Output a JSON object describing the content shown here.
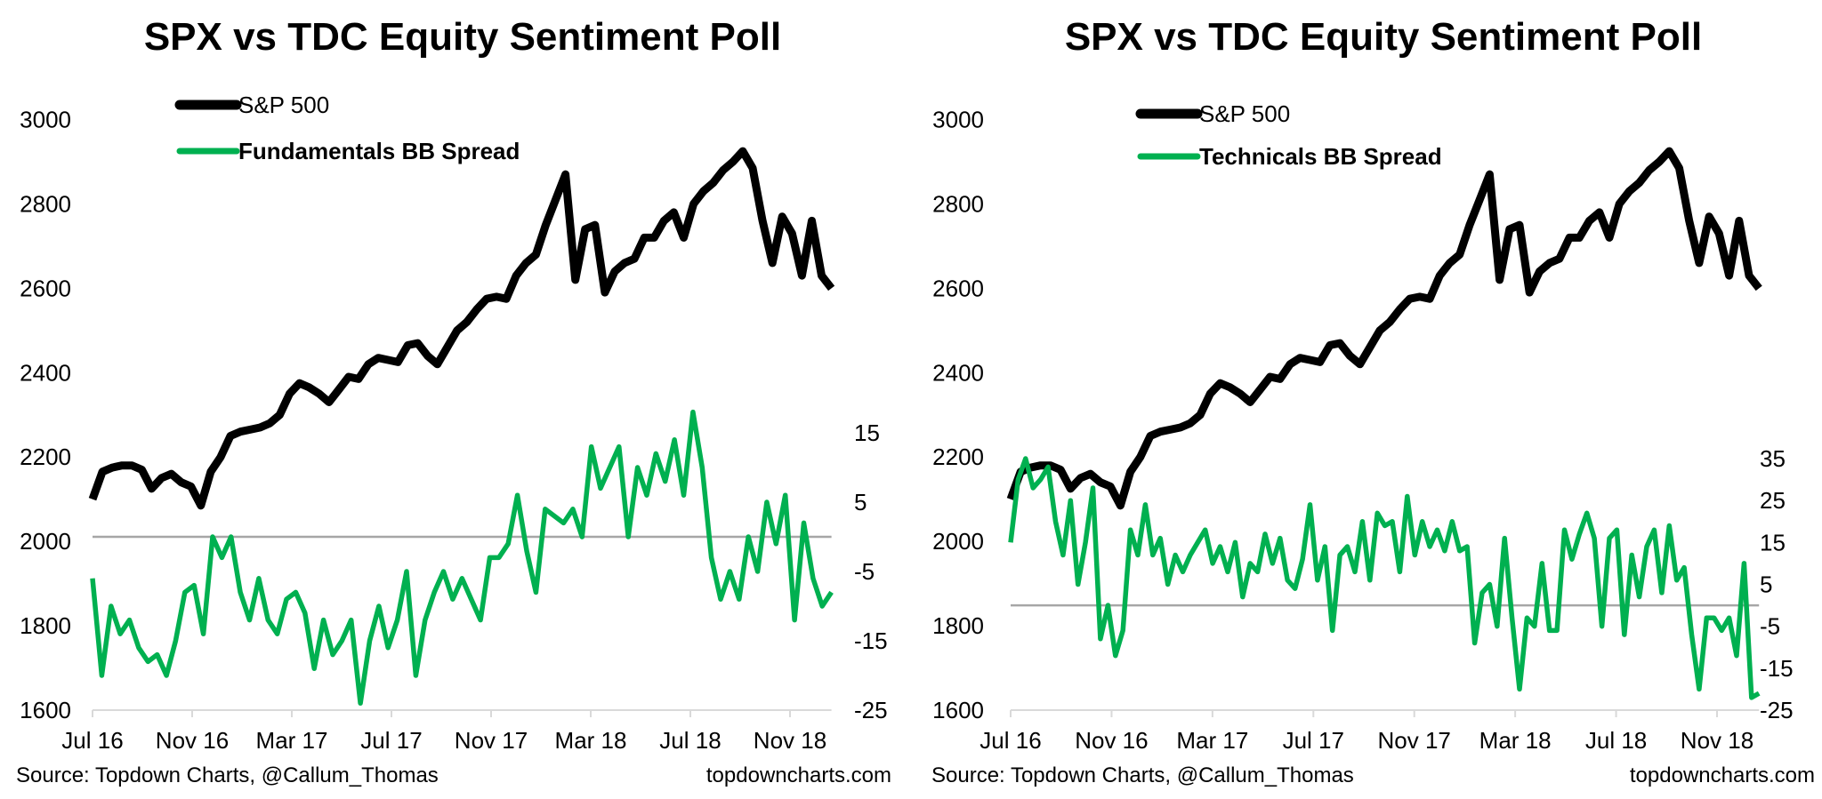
{
  "colors": {
    "spx": "#000000",
    "spread": "#00b050",
    "zero_line": "#a6a6a6"
  },
  "chart_data": [
    {
      "type": "line",
      "title": "SPX vs TDC Equity Sentiment Poll",
      "x_start": "2016-07-01",
      "x_end": "2018-12-21",
      "x_ticks": [
        "Jul 16",
        "Nov 16",
        "Mar 17",
        "Jul 17",
        "Nov 17",
        "Mar 18",
        "Jul 18",
        "Nov 18"
      ],
      "y_left_ticks": [
        "3000",
        "2800",
        "2600",
        "2400",
        "2200",
        "2000",
        "1800",
        "1600"
      ],
      "y_left_range": [
        1600,
        3000
      ],
      "y_right_ticks": [
        "15",
        "5",
        "-5",
        "-15",
        "-25"
      ],
      "y_right_range": [
        -25,
        15
      ],
      "legend_position": "top-left",
      "series": [
        {
          "name": "S&P 500",
          "axis": "left",
          "values": [
            2100,
            2165,
            2175,
            2180,
            2180,
            2170,
            2125,
            2150,
            2160,
            2140,
            2130,
            2085,
            2165,
            2200,
            2250,
            2260,
            2265,
            2270,
            2280,
            2300,
            2350,
            2375,
            2365,
            2350,
            2330,
            2360,
            2390,
            2385,
            2420,
            2435,
            2430,
            2425,
            2465,
            2470,
            2440,
            2420,
            2460,
            2500,
            2520,
            2550,
            2575,
            2580,
            2575,
            2630,
            2660,
            2680,
            2750,
            2810,
            2870,
            2620,
            2740,
            2750,
            2590,
            2640,
            2660,
            2670,
            2720,
            2720,
            2760,
            2780,
            2720,
            2800,
            2830,
            2850,
            2880,
            2900,
            2925,
            2885,
            2760,
            2660,
            2770,
            2730,
            2630,
            2760,
            2630,
            2600
          ]
        },
        {
          "name": "Fundamentals BB Spread",
          "axis": "right",
          "values": [
            -6,
            -20,
            -10,
            -14,
            -12,
            -16,
            -18,
            -17,
            -20,
            -15,
            -8,
            -7,
            -14,
            0,
            -3,
            0,
            -8,
            -12,
            -6,
            -12,
            -14,
            -9,
            -8,
            -11,
            -19,
            -12,
            -17,
            -15,
            -12,
            -24,
            -15,
            -10,
            -16,
            -12,
            -5,
            -20,
            -12,
            -8,
            -5,
            -9,
            -6,
            -9,
            -12,
            -3,
            -3,
            -1,
            6,
            -2,
            -8,
            4,
            3,
            2,
            4,
            0,
            13,
            7,
            10,
            13,
            0,
            10,
            6,
            12,
            8,
            14,
            6,
            18,
            10,
            -3,
            -9,
            -5,
            -9,
            0,
            -5,
            5,
            -1,
            6,
            -12,
            2,
            -6,
            -10,
            -8
          ]
        }
      ],
      "source": "Source: Topdown Charts, @Callum_Thomas",
      "site": "topdowncharts.com"
    },
    {
      "type": "line",
      "title": "SPX vs TDC Equity Sentiment Poll",
      "x_start": "2016-07-01",
      "x_end": "2018-12-21",
      "x_ticks": [
        "Jul 16",
        "Nov 16",
        "Mar 17",
        "Jul 17",
        "Nov 17",
        "Mar 18",
        "Jul 18",
        "Nov 18"
      ],
      "y_left_ticks": [
        "3000",
        "2800",
        "2600",
        "2400",
        "2200",
        "2000",
        "1800",
        "1600"
      ],
      "y_left_range": [
        1600,
        3000
      ],
      "y_right_ticks": [
        "35",
        "25",
        "15",
        "5",
        "-5",
        "-15",
        "-25"
      ],
      "y_right_range": [
        -25,
        35
      ],
      "legend_position": "top-left",
      "series": [
        {
          "name": "S&P 500",
          "axis": "left",
          "values": [
            2100,
            2165,
            2175,
            2180,
            2180,
            2170,
            2125,
            2150,
            2160,
            2140,
            2130,
            2085,
            2165,
            2200,
            2250,
            2260,
            2265,
            2270,
            2280,
            2300,
            2350,
            2375,
            2365,
            2350,
            2330,
            2360,
            2390,
            2385,
            2420,
            2435,
            2430,
            2425,
            2465,
            2470,
            2440,
            2420,
            2460,
            2500,
            2520,
            2550,
            2575,
            2580,
            2575,
            2630,
            2660,
            2680,
            2750,
            2810,
            2870,
            2620,
            2740,
            2750,
            2590,
            2640,
            2660,
            2670,
            2720,
            2720,
            2760,
            2780,
            2720,
            2800,
            2830,
            2850,
            2880,
            2900,
            2925,
            2885,
            2760,
            2660,
            2770,
            2730,
            2630,
            2760,
            2630,
            2600
          ]
        },
        {
          "name": "Technicals BB Spread",
          "axis": "right",
          "values": [
            15,
            30,
            35,
            28,
            30,
            33,
            20,
            12,
            25,
            5,
            15,
            28,
            -8,
            0,
            -12,
            -6,
            18,
            12,
            24,
            12,
            16,
            5,
            12,
            8,
            12,
            15,
            18,
            10,
            14,
            8,
            15,
            2,
            10,
            8,
            17,
            10,
            16,
            6,
            4,
            11,
            24,
            6,
            14,
            -6,
            12,
            14,
            8,
            20,
            6,
            22,
            19,
            20,
            8,
            26,
            12,
            20,
            14,
            18,
            13,
            20,
            13,
            14,
            -9,
            3,
            5,
            -5,
            16,
            -3,
            -20,
            -3,
            -5,
            10,
            -6,
            -6,
            18,
            11,
            17,
            22,
            16,
            -5,
            16,
            18,
            -7,
            12,
            2,
            14,
            18,
            3,
            19,
            6,
            9,
            -7,
            -20,
            -3,
            -3,
            -6,
            -3,
            -12,
            10,
            -22,
            -21
          ]
        }
      ],
      "source": "Source: Topdown Charts, @Callum_Thomas",
      "site": "topdowncharts.com"
    }
  ]
}
